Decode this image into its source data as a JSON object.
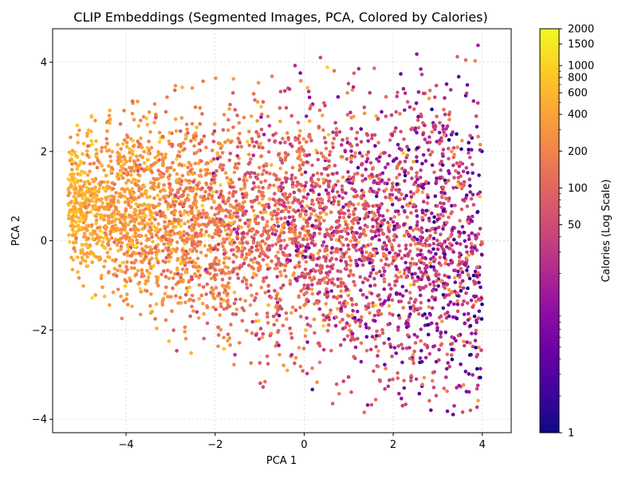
{
  "chart_data": {
    "type": "scatter",
    "title": "CLIP Embeddings (Segmented Images, PCA, Colored by Calories)",
    "xlabel": "PCA 1",
    "ylabel": "PCA 2",
    "xlim": [
      -5.65,
      4.65
    ],
    "ylim": [
      -4.3,
      4.75
    ],
    "xticks": [
      -4,
      -2,
      0,
      2,
      4
    ],
    "yticks": [
      -4,
      -2,
      0,
      2,
      4
    ],
    "xtick_labels": [
      "−4",
      "−2",
      "0",
      "2",
      "4"
    ],
    "ytick_labels": [
      "−4",
      "−2",
      "0",
      "2",
      "4"
    ],
    "grid": true,
    "colormap": "plasma",
    "colorbar": {
      "label": "Calories (Log Scale)",
      "scale": "log",
      "range": [
        1,
        2000
      ],
      "ticks": [
        1,
        50,
        100,
        200,
        400,
        600,
        800,
        1000,
        1500,
        2000
      ],
      "tick_labels": [
        "1",
        "50",
        "100",
        "200",
        "400",
        "600",
        "800",
        "1000",
        "1500",
        "2000"
      ]
    },
    "points_description_visible": "dense cloud of ~4000 points",
    "x_range_data": [
      -5.3,
      4.0
    ],
    "y_range_data": [
      -3.9,
      4.4
    ]
  }
}
